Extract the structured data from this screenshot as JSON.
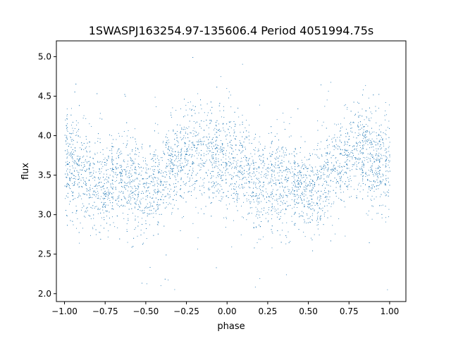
{
  "chart_data": {
    "type": "scatter",
    "title": "1SWASPJ163254.97-135606.4 Period 4051994.75s",
    "xlabel": "phase",
    "ylabel": "flux",
    "xlim": [
      -1.05,
      1.1
    ],
    "ylim": [
      1.9,
      5.2
    ],
    "xticks": [
      -1.0,
      -0.75,
      -0.5,
      -0.25,
      0.0,
      0.25,
      0.5,
      0.75,
      1.0
    ],
    "xtick_labels": [
      "−1.00",
      "−0.75",
      "−0.50",
      "−0.25",
      "0.00",
      "0.25",
      "0.50",
      "0.75",
      "1.00"
    ],
    "yticks": [
      2.0,
      2.5,
      3.0,
      3.5,
      4.0,
      4.5,
      5.0
    ],
    "ytick_labels": [
      "2.0",
      "2.5",
      "3.0",
      "3.5",
      "4.0",
      "4.5",
      "5.0"
    ],
    "grid": false,
    "legend": null,
    "marker_color": "#1f77b4",
    "series": [
      {
        "phase_range": [
          -1.0,
          1.0
        ],
        "typical_flux_range": [
          2.7,
          4.5
        ],
        "overall_flux_range": [
          2.05,
          5.05
        ],
        "profile": [
          {
            "phase": -1.0,
            "median_flux": 3.7,
            "spread": 0.35
          },
          {
            "phase": -0.9,
            "median_flux": 3.55,
            "spread": 0.3
          },
          {
            "phase": -0.8,
            "median_flux": 3.3,
            "spread": 0.3
          },
          {
            "phase": -0.7,
            "median_flux": 3.45,
            "spread": 0.3
          },
          {
            "phase": -0.6,
            "median_flux": 3.45,
            "spread": 0.3
          },
          {
            "phase": -0.5,
            "median_flux": 3.3,
            "spread": 0.25
          },
          {
            "phase": -0.4,
            "median_flux": 3.45,
            "spread": 0.28
          },
          {
            "phase": -0.3,
            "median_flux": 3.65,
            "spread": 0.28
          },
          {
            "phase": -0.2,
            "median_flux": 3.85,
            "spread": 0.3
          },
          {
            "phase": -0.1,
            "median_flux": 3.7,
            "spread": 0.3
          },
          {
            "phase": 0.0,
            "median_flux": 3.7,
            "spread": 0.35
          },
          {
            "phase": 0.1,
            "median_flux": 3.55,
            "spread": 0.3
          },
          {
            "phase": 0.2,
            "median_flux": 3.3,
            "spread": 0.3
          },
          {
            "phase": 0.3,
            "median_flux": 3.45,
            "spread": 0.3
          },
          {
            "phase": 0.4,
            "median_flux": 3.45,
            "spread": 0.3
          },
          {
            "phase": 0.5,
            "median_flux": 3.3,
            "spread": 0.25
          },
          {
            "phase": 0.6,
            "median_flux": 3.45,
            "spread": 0.28
          },
          {
            "phase": 0.7,
            "median_flux": 3.65,
            "spread": 0.28
          },
          {
            "phase": 0.8,
            "median_flux": 3.85,
            "spread": 0.3
          },
          {
            "phase": 0.9,
            "median_flux": 3.7,
            "spread": 0.3
          },
          {
            "phase": 1.0,
            "median_flux": 3.7,
            "spread": 0.35
          }
        ]
      }
    ]
  }
}
